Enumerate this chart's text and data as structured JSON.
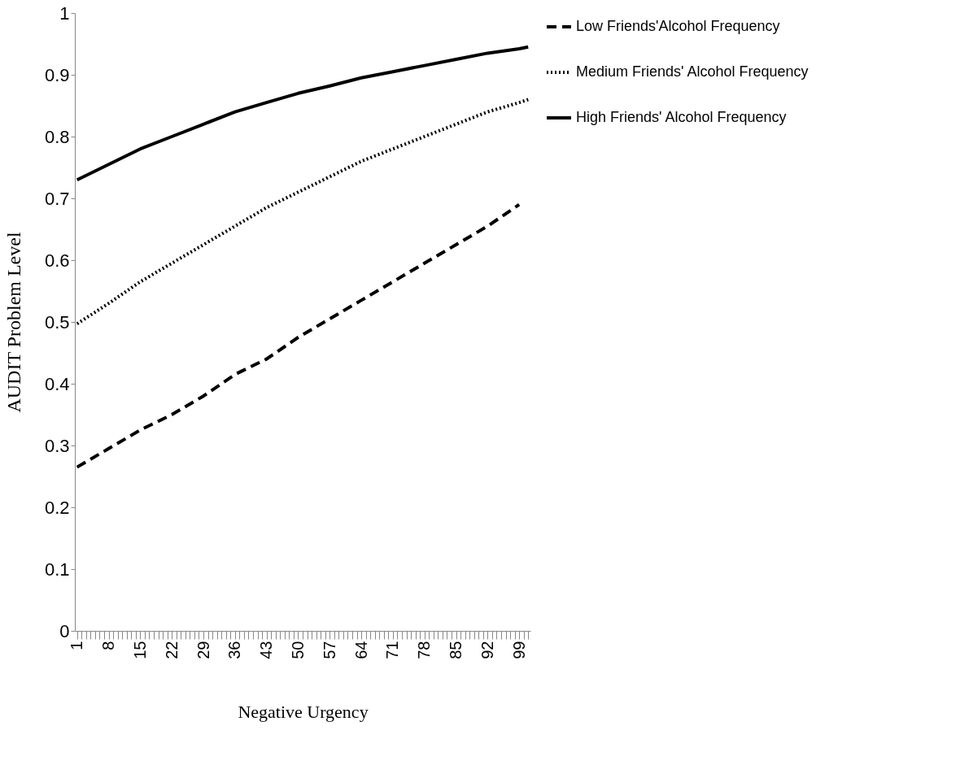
{
  "chart_data": {
    "type": "line",
    "xlabel": "Negative Urgency",
    "ylabel": "AUDIT Problem Level",
    "xlim": [
      0.5,
      101.5
    ],
    "xticks": [
      1,
      {
        "value": 2,
        "label": null
      },
      {
        "value": 3,
        "label": null
      },
      {
        "value": 4,
        "label": null
      },
      {
        "value": 5,
        "label": null
      },
      {
        "value": 6,
        "label": null
      },
      {
        "value": 7,
        "label": null
      },
      8,
      {
        "value": 9,
        "label": null
      },
      {
        "value": 10,
        "label": null
      },
      {
        "value": 11,
        "label": null
      },
      {
        "value": 12,
        "label": null
      },
      {
        "value": 13,
        "label": null
      },
      {
        "value": 14,
        "label": null
      },
      15,
      {
        "value": 16,
        "label": null
      },
      {
        "value": 17,
        "label": null
      },
      {
        "value": 18,
        "label": null
      },
      {
        "value": 19,
        "label": null
      },
      {
        "value": 20,
        "label": null
      },
      {
        "value": 21,
        "label": null
      },
      22,
      {
        "value": 23,
        "label": null
      },
      {
        "value": 24,
        "label": null
      },
      {
        "value": 25,
        "label": null
      },
      {
        "value": 26,
        "label": null
      },
      {
        "value": 27,
        "label": null
      },
      {
        "value": 28,
        "label": null
      },
      29,
      {
        "value": 30,
        "label": null
      },
      {
        "value": 31,
        "label": null
      },
      {
        "value": 32,
        "label": null
      },
      {
        "value": 33,
        "label": null
      },
      {
        "value": 34,
        "label": null
      },
      {
        "value": 35,
        "label": null
      },
      36,
      {
        "value": 37,
        "label": null
      },
      {
        "value": 38,
        "label": null
      },
      {
        "value": 39,
        "label": null
      },
      {
        "value": 40,
        "label": null
      },
      {
        "value": 41,
        "label": null
      },
      {
        "value": 42,
        "label": null
      },
      43,
      {
        "value": 44,
        "label": null
      },
      {
        "value": 45,
        "label": null
      },
      {
        "value": 46,
        "label": null
      },
      {
        "value": 47,
        "label": null
      },
      {
        "value": 48,
        "label": null
      },
      {
        "value": 49,
        "label": null
      },
      50,
      {
        "value": 51,
        "label": null
      },
      {
        "value": 52,
        "label": null
      },
      {
        "value": 53,
        "label": null
      },
      {
        "value": 54,
        "label": null
      },
      {
        "value": 55,
        "label": null
      },
      {
        "value": 56,
        "label": null
      },
      57,
      {
        "value": 58,
        "label": null
      },
      {
        "value": 59,
        "label": null
      },
      {
        "value": 60,
        "label": null
      },
      {
        "value": 61,
        "label": null
      },
      {
        "value": 62,
        "label": null
      },
      {
        "value": 63,
        "label": null
      },
      64,
      {
        "value": 65,
        "label": null
      },
      {
        "value": 66,
        "label": null
      },
      {
        "value": 67,
        "label": null
      },
      {
        "value": 68,
        "label": null
      },
      {
        "value": 69,
        "label": null
      },
      {
        "value": 70,
        "label": null
      },
      71,
      {
        "value": 72,
        "label": null
      },
      {
        "value": 73,
        "label": null
      },
      {
        "value": 74,
        "label": null
      },
      {
        "value": 75,
        "label": null
      },
      {
        "value": 76,
        "label": null
      },
      {
        "value": 77,
        "label": null
      },
      78,
      {
        "value": 79,
        "label": null
      },
      {
        "value": 80,
        "label": null
      },
      {
        "value": 81,
        "label": null
      },
      {
        "value": 82,
        "label": null
      },
      {
        "value": 83,
        "label": null
      },
      {
        "value": 84,
        "label": null
      },
      85,
      {
        "value": 86,
        "label": null
      },
      {
        "value": 87,
        "label": null
      },
      {
        "value": 88,
        "label": null
      },
      {
        "value": 89,
        "label": null
      },
      {
        "value": 90,
        "label": null
      },
      {
        "value": 91,
        "label": null
      },
      92,
      {
        "value": 93,
        "label": null
      },
      {
        "value": 94,
        "label": null
      },
      {
        "value": 95,
        "label": null
      },
      {
        "value": 96,
        "label": null
      },
      {
        "value": 97,
        "label": null
      },
      {
        "value": 98,
        "label": null
      },
      99,
      {
        "value": 100,
        "label": null
      },
      {
        "value": 101,
        "label": null
      }
    ],
    "ylim": [
      0,
      1
    ],
    "yticks": [
      0,
      0.1,
      0.2,
      0.3,
      0.4,
      0.5,
      0.6,
      0.7,
      0.8,
      0.9,
      1
    ],
    "grid": false,
    "legend": "right",
    "marker": "none",
    "series": [
      {
        "name": "Low Friends'Alcohol Frequency",
        "color": "#000000",
        "line_style": "dashed",
        "x": [
          1,
          8,
          15,
          22,
          29,
          36,
          43,
          50,
          57,
          64,
          71,
          78,
          85,
          92,
          99
        ],
        "values": [
          0.265,
          0.295,
          0.325,
          0.35,
          0.38,
          0.415,
          0.44,
          0.475,
          0.505,
          0.535,
          0.565,
          0.595,
          0.625,
          0.655,
          0.69
        ]
      },
      {
        "name": "Medium Friends' Alcohol Frequency",
        "color": "#000000",
        "line_style": "dotted",
        "x": [
          1,
          8,
          15,
          22,
          29,
          36,
          43,
          50,
          57,
          64,
          71,
          78,
          85,
          92,
          99,
          101
        ],
        "values": [
          0.497,
          0.53,
          0.565,
          0.595,
          0.625,
          0.655,
          0.685,
          0.71,
          0.735,
          0.76,
          0.78,
          0.8,
          0.82,
          0.84,
          0.855,
          0.86
        ]
      },
      {
        "name": "High Friends' Alcohol Frequency",
        "color": "#000000",
        "line_style": "solid",
        "x": [
          1,
          8,
          15,
          22,
          29,
          36,
          43,
          50,
          57,
          64,
          71,
          78,
          85,
          92,
          99,
          101
        ],
        "values": [
          0.73,
          0.755,
          0.78,
          0.8,
          0.82,
          0.84,
          0.855,
          0.87,
          0.882,
          0.895,
          0.905,
          0.915,
          0.925,
          0.935,
          0.942,
          0.945
        ]
      }
    ]
  }
}
